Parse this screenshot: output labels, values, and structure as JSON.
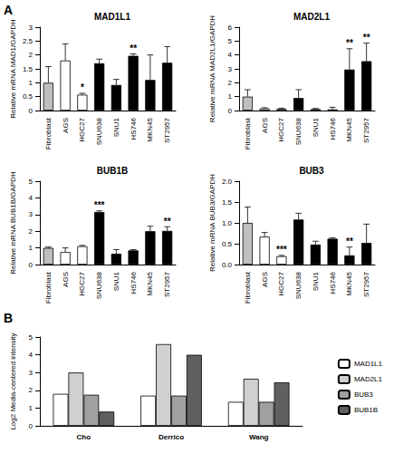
{
  "panel_labels": [
    "A",
    "B"
  ],
  "chart_data": [
    {
      "type": "bar",
      "title": "MAD1L1",
      "ylabel": "Relative mRNA MAD1/GAPDH",
      "categories": [
        "Fibroblast",
        "AGS",
        "HGC27",
        "SNU638",
        "SNU1",
        "HS746",
        "MKN45",
        "ST2957"
      ],
      "values": [
        1.0,
        1.8,
        0.57,
        1.7,
        0.92,
        1.97,
        1.1,
        1.72
      ],
      "errors": [
        0.58,
        0.6,
        0.05,
        0.15,
        0.2,
        0.07,
        0.9,
        0.58
      ],
      "significance": [
        null,
        null,
        "*",
        null,
        null,
        "**",
        null,
        null
      ],
      "colors": [
        "#bfbfbf",
        "#ffffff",
        "#ffffff",
        "#000000",
        "#000000",
        "#000000",
        "#000000",
        "#000000"
      ],
      "ylim": [
        0,
        3
      ],
      "yticks": [
        0,
        0.5,
        1,
        1.5,
        2,
        2.5,
        3
      ],
      "grid": false
    },
    {
      "type": "bar",
      "title": "MAD2L1",
      "ylabel": "Relative mRNA MAD2L1/GAPDH",
      "categories": [
        "Fibroblast",
        "AGS",
        "HGC27",
        "SNU638",
        "SNU1",
        "HS746",
        "MKN45",
        "ST2957"
      ],
      "values": [
        1.0,
        0.15,
        0.12,
        0.9,
        0.1,
        0.08,
        2.95,
        3.55
      ],
      "errors": [
        0.5,
        0.05,
        0.05,
        0.6,
        0.05,
        0.15,
        1.5,
        1.3
      ],
      "significance": [
        null,
        null,
        null,
        null,
        null,
        null,
        "**",
        "**"
      ],
      "colors": [
        "#bfbfbf",
        "#ffffff",
        "#ffffff",
        "#000000",
        "#000000",
        "#000000",
        "#000000",
        "#000000"
      ],
      "ylim": [
        0,
        6
      ],
      "yticks": [
        0,
        1,
        2,
        3,
        4,
        5,
        6
      ],
      "grid": false
    },
    {
      "type": "bar",
      "title": "BUB1B",
      "ylabel": "Relative mRNA BUB1B/GAPDH",
      "categories": [
        "Fibroblast",
        "AGS",
        "HGC27",
        "SNU638",
        "SNU1",
        "HS746",
        "MKN45",
        "ST2957"
      ],
      "values": [
        1.0,
        0.75,
        1.1,
        3.15,
        0.65,
        0.85,
        2.0,
        2.02
      ],
      "errors": [
        0.05,
        0.25,
        0.05,
        0.07,
        0.25,
        0.05,
        0.3,
        0.25
      ],
      "significance": [
        null,
        null,
        null,
        "***",
        null,
        null,
        null,
        "**"
      ],
      "colors": [
        "#bfbfbf",
        "#ffffff",
        "#ffffff",
        "#000000",
        "#000000",
        "#000000",
        "#000000",
        "#000000"
      ],
      "ylim": [
        0,
        5
      ],
      "yticks": [
        0,
        1,
        2,
        3,
        4,
        5
      ],
      "grid": false
    },
    {
      "type": "bar",
      "title": "BUB3",
      "ylabel": "Relative mRNA BUB3/GAPDH",
      "categories": [
        "Fibroblast",
        "AGS",
        "HGC27",
        "SNU638",
        "SNU1",
        "HS746",
        "MKN45",
        "ST2957"
      ],
      "values": [
        1.0,
        0.67,
        0.2,
        1.08,
        0.48,
        0.62,
        0.22,
        0.52
      ],
      "errors": [
        0.38,
        0.1,
        0.02,
        0.15,
        0.08,
        0.02,
        0.2,
        0.45
      ],
      "significance": [
        null,
        null,
        "***",
        null,
        null,
        null,
        "**",
        null
      ],
      "colors": [
        "#bfbfbf",
        "#ffffff",
        "#ffffff",
        "#000000",
        "#000000",
        "#000000",
        "#000000",
        "#000000"
      ],
      "ylim": [
        0,
        2
      ],
      "yticks": [
        {
          "value": 0,
          "label": "0.0"
        },
        {
          "value": 0.5,
          "label": "0.5"
        },
        {
          "value": 1,
          "label": "1.0"
        },
        {
          "value": 1.5,
          "label": "1.5"
        },
        {
          "value": 2,
          "label": "2.0"
        }
      ],
      "grid": false
    },
    {
      "type": "bar",
      "ylabel": "Log2 Media-centered intensity",
      "categories": [
        "Cho",
        "Derrico",
        "Wang"
      ],
      "series": [
        {
          "name": "MAD1L1",
          "color": "#ffffff",
          "values": [
            1.8,
            1.7,
            1.35
          ]
        },
        {
          "name": "MAD2L1",
          "color": "#d0d0d0",
          "values": [
            3.0,
            4.6,
            2.65
          ]
        },
        {
          "name": "BUB3",
          "color": "#a0a0a0",
          "values": [
            1.75,
            1.7,
            1.35
          ]
        },
        {
          "name": "BUB1B",
          "color": "#606060",
          "values": [
            0.8,
            4.0,
            2.45
          ]
        }
      ],
      "ylim": [
        0,
        5
      ],
      "yticks": [
        0,
        1,
        2,
        3,
        4,
        5
      ],
      "legend": "right",
      "grid": false
    }
  ]
}
